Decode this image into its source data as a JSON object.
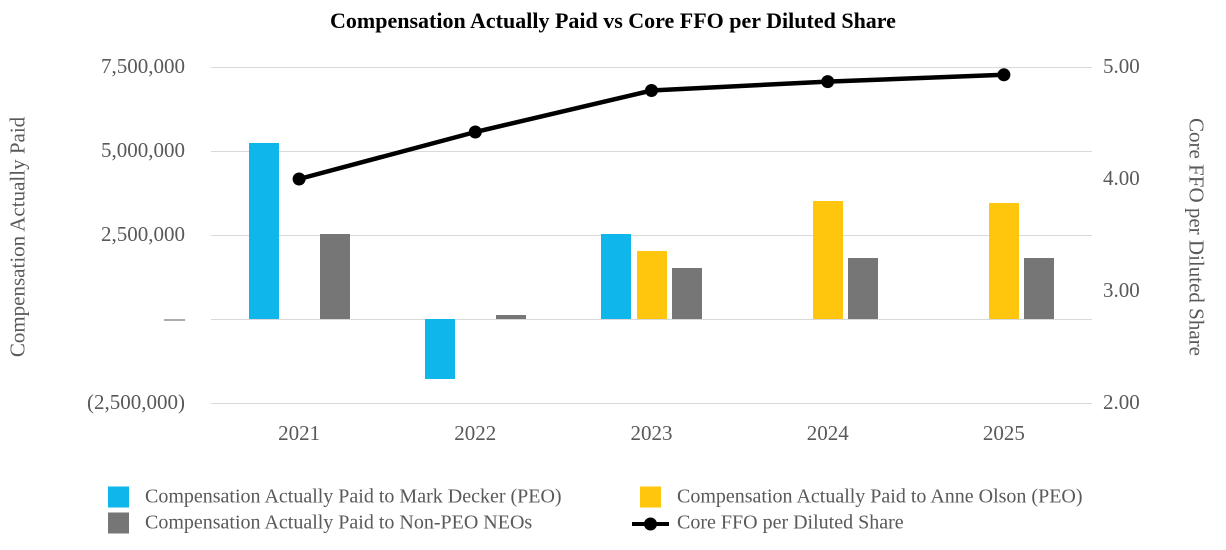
{
  "title": "Compensation Actually Paid vs Core FFO per Diluted Share",
  "axes": {
    "left": {
      "title": "Compensation Actually Paid",
      "tick_labels": [
        "7,500,000",
        "5,000,000",
        "2,500,000",
        "—",
        "(2,500,000)"
      ],
      "tick_values": [
        7500000,
        5000000,
        2500000,
        0,
        -2500000
      ],
      "range": [
        -2500000,
        7500000
      ]
    },
    "right": {
      "title": "Core FFO per Diluted Share",
      "tick_labels": [
        "5.00",
        "4.00",
        "3.00",
        "2.00"
      ],
      "tick_values": [
        5,
        4,
        3,
        2
      ],
      "range": [
        2,
        5
      ]
    }
  },
  "legend": {
    "column1": [
      {
        "label": "Compensation Actually Paid to Mark Decker (PEO)",
        "swatch": "square",
        "color": "#0FB6EB"
      },
      {
        "label": "Compensation Actually Paid to Non-PEO NEOs",
        "swatch": "square",
        "color": "#767676"
      }
    ],
    "column2": [
      {
        "label": "Compensation Actually Paid to Anne Olson (PEO)",
        "swatch": "square",
        "color": "#FFC60D"
      },
      {
        "label": "Core FFO per Diluted Share",
        "swatch": "line-marker",
        "color": "#000000"
      }
    ]
  },
  "colors": {
    "blue_bar": "#0FB6EB",
    "yellow_bar": "#FFC60D",
    "gray_bar": "#767676",
    "line": "#000000",
    "gridline": "#D9D9D9",
    "axis_text": "#595959",
    "title_text": "#000000",
    "background": "#FFFFFF"
  },
  "chart_data": {
    "type": "combo (grouped bar + line, dual axis)",
    "title": "Compensation Actually Paid vs Core FFO per Diluted Share",
    "categories": [
      "2021",
      "2022",
      "2023",
      "2024",
      "2025"
    ],
    "series": [
      {
        "name": "Compensation Actually Paid to Mark Decker (PEO)",
        "type": "bar",
        "axis": "left",
        "color": "#0FB6EB",
        "values": [
          5250000,
          -1780000,
          2520000,
          null,
          null
        ]
      },
      {
        "name": "Compensation Actually Paid to Anne Olson (PEO)",
        "type": "bar",
        "axis": "left",
        "color": "#FFC60D",
        "values": [
          null,
          null,
          2040000,
          3520000,
          3450000
        ]
      },
      {
        "name": "Compensation Actually Paid to Non-PEO NEOs",
        "type": "bar",
        "axis": "left",
        "color": "#767676",
        "values": [
          2520000,
          120000,
          1530000,
          1830000,
          1820000
        ]
      },
      {
        "name": "Core FFO per Diluted Share",
        "type": "line",
        "axis": "right",
        "color": "#000000",
        "values": [
          4.0,
          4.42,
          4.79,
          4.87,
          4.93
        ]
      }
    ],
    "left_ylabel": "Compensation Actually Paid",
    "right_ylabel": "Core FFO per Diluted Share",
    "left_ylim": [
      -2500000,
      7500000
    ],
    "left_tick_step": 2500000,
    "right_ylim": [
      2.0,
      5.0
    ],
    "right_tick_step": 1.0,
    "grid": true,
    "legend_position": "bottom"
  }
}
